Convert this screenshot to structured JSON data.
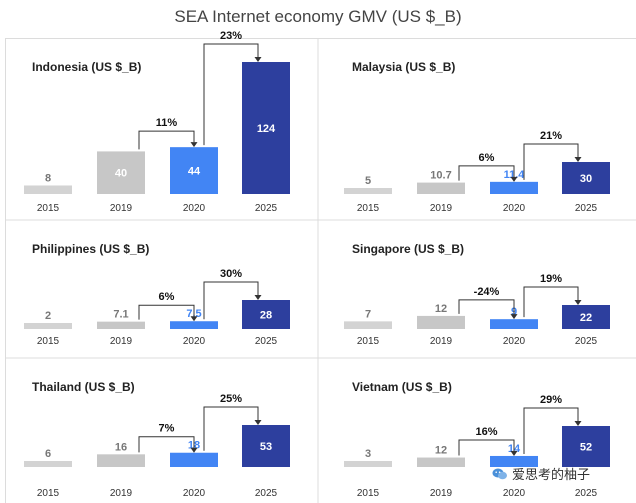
{
  "title": "SEA Internet economy GMV (US $_B)",
  "watermark": "爱思考的柚子",
  "colors": {
    "bar_2015": "#d3d3d3",
    "bar_2019": "#c7c7c7",
    "bar_2020": "#4285f4",
    "bar_2025": "#2d3f9e",
    "label_light": "#777777",
    "label_white": "#ffffff",
    "label_blue": "#4285f4",
    "grid": "#dcdcdc",
    "connector": "#333333"
  },
  "chart_data": [
    {
      "type": "bar",
      "title": "Indonesia (US $_B)",
      "categories": [
        "2015",
        "2019",
        "2020",
        "2025"
      ],
      "values": [
        8,
        40,
        44,
        124
      ],
      "value_labels": [
        "8",
        "40",
        "44",
        "124"
      ],
      "growth": [
        {
          "from": "2019",
          "to": "2020",
          "label": "11%"
        },
        {
          "from": "2020",
          "to": "2025",
          "label": "23%"
        }
      ]
    },
    {
      "type": "bar",
      "title": "Malaysia (US $_B)",
      "categories": [
        "2015",
        "2019",
        "2020",
        "2025"
      ],
      "values": [
        5,
        10.7,
        11.4,
        30
      ],
      "value_labels": [
        "5",
        "10.7",
        "11.4",
        "30"
      ],
      "growth": [
        {
          "from": "2019",
          "to": "2020",
          "label": "6%"
        },
        {
          "from": "2020",
          "to": "2025",
          "label": "21%"
        }
      ]
    },
    {
      "type": "bar",
      "title": "Philippines (US $_B)",
      "categories": [
        "2015",
        "2019",
        "2020",
        "2025"
      ],
      "values": [
        2,
        7.1,
        7.5,
        28
      ],
      "value_labels": [
        "2",
        "7.1",
        "7.5",
        "28"
      ],
      "growth": [
        {
          "from": "2019",
          "to": "2020",
          "label": "6%"
        },
        {
          "from": "2020",
          "to": "2025",
          "label": "30%"
        }
      ]
    },
    {
      "type": "bar",
      "title": "Singapore (US $_B)",
      "categories": [
        "2015",
        "2019",
        "2020",
        "2025"
      ],
      "values": [
        7,
        12,
        9,
        22
      ],
      "value_labels": [
        "7",
        "12",
        "9",
        "22"
      ],
      "growth": [
        {
          "from": "2019",
          "to": "2020",
          "label": "-24%"
        },
        {
          "from": "2020",
          "to": "2025",
          "label": "19%"
        }
      ]
    },
    {
      "type": "bar",
      "title": "Thailand (US $_B)",
      "categories": [
        "2015",
        "2019",
        "2020",
        "2025"
      ],
      "values": [
        6,
        16,
        18,
        53
      ],
      "value_labels": [
        "6",
        "16",
        "18",
        "53"
      ],
      "growth": [
        {
          "from": "2019",
          "to": "2020",
          "label": "7%"
        },
        {
          "from": "2020",
          "to": "2025",
          "label": "25%"
        }
      ]
    },
    {
      "type": "bar",
      "title": "Vietnam (US $_B)",
      "categories": [
        "2015",
        "2019",
        "2020",
        "2025"
      ],
      "values": [
        3,
        12,
        14,
        52
      ],
      "value_labels": [
        "3",
        "12",
        "14",
        "52"
      ],
      "growth": [
        {
          "from": "2019",
          "to": "2020",
          "label": "16%"
        },
        {
          "from": "2020",
          "to": "2025",
          "label": "29%"
        }
      ]
    }
  ]
}
